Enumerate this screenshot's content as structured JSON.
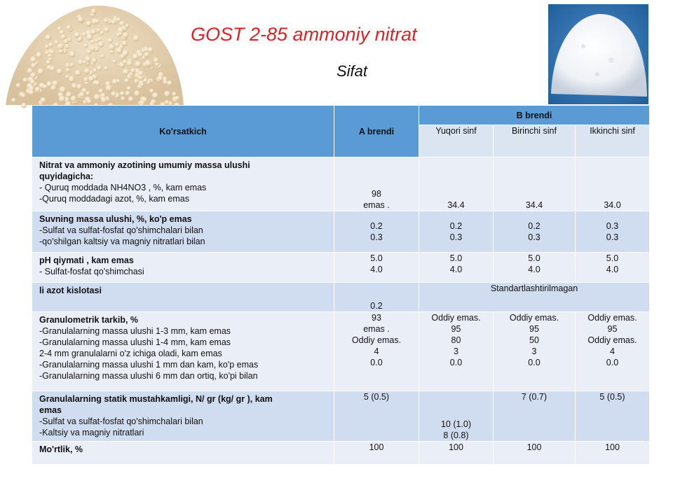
{
  "title": "GOST 2-85 ammoniy nitrat",
  "subtitle": "Sifat",
  "table": {
    "headers": {
      "indicator": "Ko'rsatkich",
      "brand_a": "A brendi",
      "brand_b": "B brendi",
      "b_grades": [
        "Yuqori sinf",
        "Birinchi sinf",
        "Ikkinchi sinf"
      ]
    },
    "rows": [
      {
        "label_bold": [
          "Nitrat va ammoniy azotining umumiy massa ulushi",
          "quyidagicha:"
        ],
        "label_lines": [
          "- Quruq moddada NH4NO3 , %, kam emas",
          "-Quruq moddadagi azot, %, kam emas"
        ],
        "a": [
          "98",
          "emas ."
        ],
        "b": [
          [
            "34.4"
          ],
          [
            "34.4"
          ],
          [
            "34.0"
          ]
        ]
      },
      {
        "label_bold": [
          "Suvning massa ulushi, %, ko'p emas"
        ],
        "label_lines": [
          "-Sulfat va sulfat-fosfat qo'shimchalari bilan",
          "-qo'shilgan kaltsiy va magniy nitratlari bilan"
        ],
        "a": [
          "0.2",
          "0.3"
        ],
        "b": [
          [
            "0.2",
            "0.3"
          ],
          [
            "0.2",
            "0.3"
          ],
          [
            "0.3",
            "0.3"
          ]
        ]
      },
      {
        "label_bold": [
          "pH qiymati , kam emas"
        ],
        "label_lines": [
          "- Sulfat-fosfat qo'shimchasi"
        ],
        "a": [
          "5.0",
          "4.0"
        ],
        "b": [
          [
            "5.0",
            "4.0"
          ],
          [
            "5.0",
            "4.0"
          ],
          [
            "5.0",
            "4.0"
          ]
        ]
      },
      {
        "label_bold": [
          "li azot kislotasi"
        ],
        "label_lines": [],
        "a": [
          "0.2"
        ],
        "b_merged": "Standartlashtirilmagan"
      },
      {
        "label_bold": [
          "Granulometrik tarkib, %"
        ],
        "label_lines": [
          "-Granulalarning massa ulushi 1-3 mm, kam emas",
          "-Granulalarning massa ulushi 1-4 mm, kam emas",
          "2-4 mm granulalarni o'z ichiga oladi, kam emas",
          "-Granulalarning massa ulushi 1 mm dan kam, ko'p emas",
          "-Granulalarning massa ulushi 6 mm dan ortiq, ko'pi bilan"
        ],
        "a": [
          "93",
          "emas .",
          "Oddiy emas.",
          "4",
          "0.0"
        ],
        "b": [
          [
            "Oddiy emas.",
            "95",
            "80",
            "3",
            "0.0"
          ],
          [
            "Oddiy emas.",
            "95",
            "50",
            "3",
            "0.0"
          ],
          [
            "Oddiy emas.",
            "95",
            "Oddiy emas.",
            "4",
            "0.0"
          ]
        ]
      },
      {
        "label_bold": [
          "Granulalarning statik mustahkamligi, N/ gr (kg/ gr ), kam",
          "emas"
        ],
        "label_lines": [
          "-Sulfat va sulfat-fosfat qo'shimchalari bilan",
          "-Kaltsiy va magniy nitratlari"
        ],
        "a": [
          "5 (0.5)"
        ],
        "b": [
          [
            "10 (1.0)",
            "8 (0.8)"
          ],
          [
            "7 (0.7)"
          ],
          [
            "5 (0.5)"
          ]
        ]
      },
      {
        "label_bold": [
          "Mo'rtlik, %"
        ],
        "label_lines": [],
        "a": [
          "100"
        ],
        "b": [
          [
            "100"
          ],
          [
            "100"
          ],
          [
            "100"
          ]
        ]
      }
    ]
  }
}
